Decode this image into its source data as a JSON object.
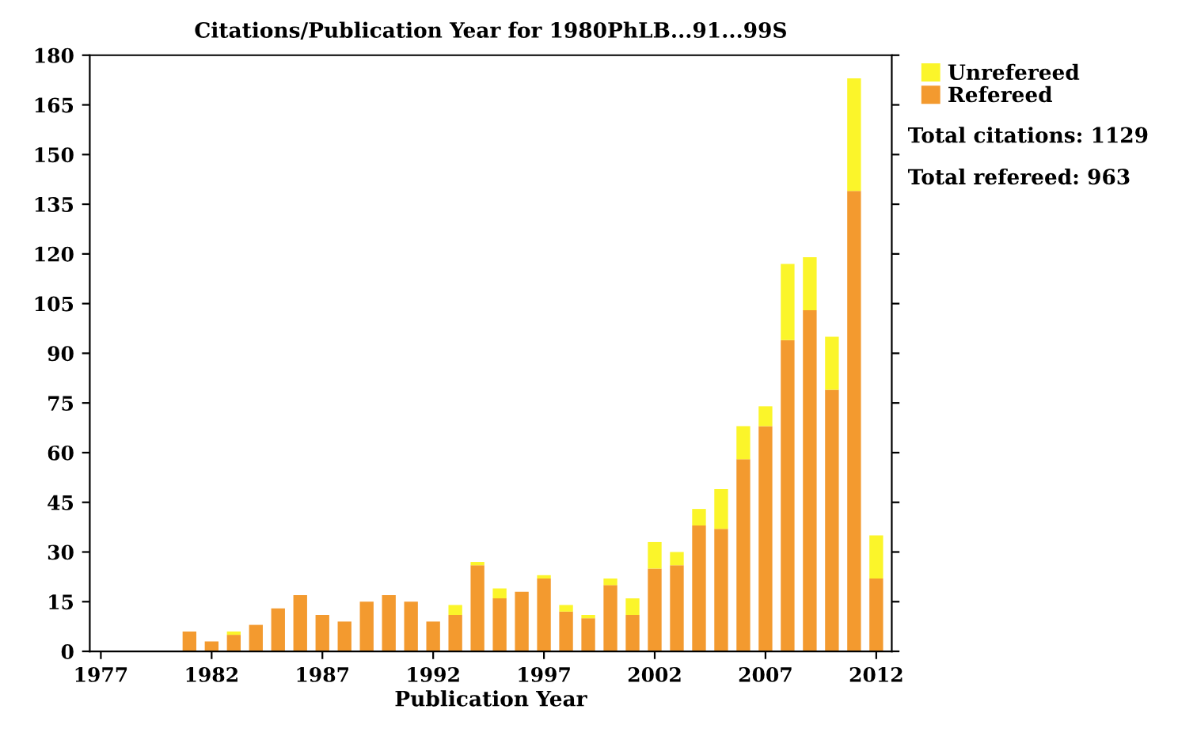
{
  "chart_data": {
    "type": "bar",
    "stacked": true,
    "title": "Citations/Publication Year for 1980PhLB...91...99S",
    "xlabel": "Publication Year",
    "x": [
      1981,
      1982,
      1983,
      1984,
      1985,
      1986,
      1987,
      1988,
      1989,
      1990,
      1991,
      1992,
      1993,
      1994,
      1995,
      1996,
      1997,
      1998,
      1999,
      2000,
      2001,
      2002,
      2003,
      2004,
      2005,
      2006,
      2007,
      2008,
      2009,
      2010,
      2011,
      2012
    ],
    "series": [
      {
        "name": "Refereed",
        "color": "#f39a2f",
        "values": [
          6,
          3,
          5,
          8,
          13,
          17,
          11,
          9,
          15,
          17,
          15,
          9,
          11,
          26,
          16,
          18,
          22,
          12,
          10,
          20,
          11,
          25,
          26,
          38,
          37,
          58,
          68,
          94,
          103,
          79,
          139,
          22
        ]
      },
      {
        "name": "Unrefereed",
        "color": "#fbf52a",
        "values": [
          0,
          0,
          1,
          0,
          0,
          0,
          0,
          0,
          0,
          0,
          0,
          0,
          3,
          1,
          3,
          0,
          1,
          2,
          1,
          2,
          5,
          8,
          4,
          5,
          12,
          10,
          6,
          23,
          16,
          16,
          34,
          13
        ]
      }
    ],
    "xlim": [
      1976.5,
      2012.7
    ],
    "xticks": [
      1977,
      1982,
      1987,
      1992,
      1997,
      2002,
      2007,
      2012
    ],
    "ylim": [
      0,
      180
    ],
    "yticks": [
      0,
      15,
      30,
      45,
      60,
      75,
      90,
      105,
      120,
      135,
      150,
      165,
      180
    ],
    "grid": false,
    "legend": "right",
    "annotations": [
      "Total citations: 1129",
      "Total refereed: 963"
    ]
  }
}
